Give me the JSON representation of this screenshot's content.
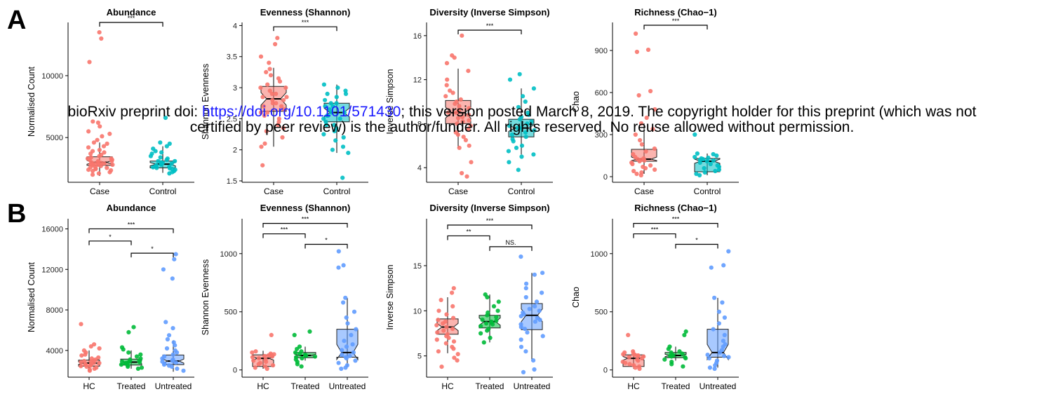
{
  "panels": {
    "a_label": "A",
    "b_label": "B"
  },
  "watermark": {
    "line1_pre": "bioRxiv preprint doi: ",
    "line1_link": "https://doi.org/10.1101/571430",
    "line1_post": "; this version posted March 8, 2019. The copyright holder for this preprint (which was not",
    "line2": "certified by peer review) is the author/funder. All rights reserved. No reuse allowed without permission."
  },
  "colors": {
    "Case": "#F8766D",
    "Control": "#00BFC4",
    "HC": "#F8766D",
    "Treated": "#00BA38",
    "Untreated": "#619CFF"
  },
  "chart_data": [
    {
      "type": "box",
      "row": "A",
      "title": "Abundance",
      "ylabel": "Normalised Count",
      "categories": [
        "Case",
        "Control"
      ],
      "ylim": [
        1500,
        14300
      ],
      "yticks": [
        5000,
        10000
      ],
      "boxes": [
        {
          "min": 1900,
          "q1": 2750,
          "median": 3000,
          "q3": 3450,
          "max": 4600,
          "notch_lo": 2850,
          "notch_hi": 3150
        },
        {
          "min": 2150,
          "q1": 2550,
          "median": 2850,
          "q3": 3100,
          "max": 4300,
          "notch_lo": 2720,
          "notch_hi": 2980
        }
      ],
      "points": [
        [
          13500,
          13000,
          11100,
          6300,
          6200,
          5900,
          5500,
          5300,
          5100,
          4800,
          4600,
          4500,
          4300,
          4200,
          4000,
          3900,
          3800,
          3700,
          3600,
          3500,
          3400,
          3300,
          3300,
          3200,
          3200,
          3100,
          3100,
          3000,
          3000,
          2950,
          2900,
          2900,
          2850,
          2800,
          2800,
          2750,
          2700,
          2650,
          2600,
          2550,
          2500,
          2450,
          2400,
          2350,
          2300,
          2200,
          2100,
          2000
        ],
        [
          6600,
          4600,
          4500,
          4300,
          4100,
          3900,
          3800,
          3700,
          3500,
          3400,
          3300,
          3200,
          3100,
          3100,
          3000,
          2950,
          2900,
          2900,
          2850,
          2800,
          2750,
          2700,
          2650,
          2600,
          2550,
          2500,
          2450,
          2400,
          2300,
          2200,
          2100
        ]
      ],
      "comparisons": [
        {
          "from": 0,
          "to": 1,
          "y": 14300,
          "label": "***"
        }
      ]
    },
    {
      "type": "box",
      "row": "A",
      "title": "Evenness (Shannon)",
      "ylabel": "Shannon Evenness",
      "categories": [
        "Case",
        "Control"
      ],
      "ylim": [
        1.5,
        4.05
      ],
      "yticks": [
        1.5,
        2.0,
        2.5,
        3.0,
        3.5,
        4.0
      ],
      "boxes": [
        {
          "min": 2.05,
          "q1": 2.62,
          "median": 2.82,
          "q3": 3.02,
          "max": 3.32,
          "notch_lo": 2.72,
          "notch_hi": 2.92
        },
        {
          "min": 1.95,
          "q1": 2.45,
          "median": 2.6,
          "q3": 2.75,
          "max": 3.05,
          "notch_lo": 2.53,
          "notch_hi": 2.67
        }
      ],
      "points": [
        [
          3.8,
          3.7,
          3.5,
          3.4,
          3.3,
          3.25,
          3.2,
          3.15,
          3.1,
          3.05,
          3.0,
          3.0,
          2.95,
          2.9,
          2.9,
          2.85,
          2.85,
          2.8,
          2.8,
          2.75,
          2.75,
          2.7,
          2.7,
          2.65,
          2.6,
          2.6,
          2.55,
          2.5,
          2.45,
          2.4,
          2.35,
          2.3,
          2.2,
          2.1,
          2.05,
          1.75
        ],
        [
          3.05,
          3.0,
          2.95,
          2.9,
          2.9,
          2.85,
          2.8,
          2.75,
          2.75,
          2.7,
          2.7,
          2.65,
          2.6,
          2.6,
          2.55,
          2.55,
          2.5,
          2.5,
          2.45,
          2.4,
          2.4,
          2.35,
          2.3,
          2.25,
          2.2,
          2.15,
          2.05,
          2.0,
          1.95,
          1.55
        ]
      ],
      "comparisons": [
        {
          "from": 0,
          "to": 1,
          "y": 3.98,
          "label": "***"
        }
      ]
    },
    {
      "type": "box",
      "row": "A",
      "title": "Diversity (Inverse Simpson)",
      "ylabel": "Inverse Simpson",
      "categories": [
        "Case",
        "Control"
      ],
      "ylim": [
        2.8,
        17.2
      ],
      "yticks": [
        4,
        8,
        12,
        16
      ],
      "boxes": [
        {
          "min": 5.8,
          "q1": 8.0,
          "median": 9.0,
          "q3": 10.1,
          "max": 13.0,
          "notch_lo": 8.5,
          "notch_hi": 9.5
        },
        {
          "min": 5.2,
          "q1": 6.8,
          "median": 7.6,
          "q3": 8.4,
          "max": 11.2,
          "notch_lo": 7.3,
          "notch_hi": 7.9
        }
      ],
      "points": [
        [
          16.0,
          14.2,
          14.0,
          13.5,
          12.8,
          12.0,
          11.5,
          11.0,
          10.8,
          10.5,
          10.2,
          10.0,
          9.8,
          9.6,
          9.4,
          9.2,
          9.0,
          9.0,
          8.8,
          8.6,
          8.5,
          8.3,
          8.2,
          8.0,
          7.8,
          7.5,
          7.2,
          7.0,
          6.8,
          6.5,
          6.0,
          5.8,
          4.5,
          3.5,
          3.2
        ],
        [
          12.5,
          12.0,
          11.2,
          10.5,
          10.0,
          9.5,
          9.0,
          8.8,
          8.6,
          8.4,
          8.2,
          8.0,
          7.8,
          7.6,
          7.6,
          7.4,
          7.2,
          7.0,
          6.8,
          6.6,
          6.4,
          6.0,
          5.8,
          5.5,
          5.2,
          5.0,
          4.5,
          3.8
        ]
      ],
      "comparisons": [
        {
          "from": 0,
          "to": 1,
          "y": 16.5,
          "label": "***"
        }
      ]
    },
    {
      "type": "box",
      "row": "A",
      "title": "Richness (Chao−1)",
      "ylabel": "Chao",
      "categories": [
        "Case",
        "Control"
      ],
      "ylim": [
        -30,
        1100
      ],
      "yticks": [
        0,
        300,
        600,
        900
      ],
      "boxes": [
        {
          "min": 20,
          "q1": 110,
          "median": 125,
          "q3": 195,
          "max": 380,
          "notch_lo": 115,
          "notch_hi": 140
        },
        {
          "min": 10,
          "q1": 35,
          "median": 110,
          "q3": 130,
          "max": 165,
          "notch_lo": 95,
          "notch_hi": 125
        }
      ],
      "points": [
        [
          1020,
          905,
          890,
          610,
          580,
          480,
          420,
          380,
          340,
          300,
          260,
          230,
          200,
          180,
          160,
          140,
          130,
          125,
          120,
          115,
          110,
          100,
          90,
          80,
          70,
          60,
          50,
          40,
          30,
          20,
          10
        ],
        [
          300,
          165,
          160,
          150,
          140,
          135,
          130,
          125,
          120,
          115,
          110,
          100,
          90,
          80,
          70,
          60,
          50,
          40,
          30,
          20,
          10
        ]
      ],
      "comparisons": [
        {
          "from": 0,
          "to": 1,
          "y": 1080,
          "label": "***"
        }
      ]
    },
    {
      "type": "box",
      "row": "B",
      "title": "Abundance",
      "ylabel": "Normalised Count",
      "categories": [
        "HC",
        "Treated",
        "Untreated"
      ],
      "ylim": [
        1500,
        17000
      ],
      "yticks": [
        4000,
        8000,
        12000,
        16000
      ],
      "boxes": [
        {
          "min": 1900,
          "q1": 2450,
          "median": 2750,
          "q3": 3050,
          "max": 4000,
          "notch_lo": 2620,
          "notch_hi": 2880
        },
        {
          "min": 2200,
          "q1": 2550,
          "median": 2850,
          "q3": 3150,
          "max": 4000,
          "notch_lo": 2700,
          "notch_hi": 3000
        },
        {
          "min": 1900,
          "q1": 2600,
          "median": 2950,
          "q3": 3550,
          "max": 5000,
          "notch_lo": 2750,
          "notch_hi": 3150
        }
      ],
      "points": [
        [
          6600,
          4600,
          4400,
          4200,
          4000,
          3800,
          3600,
          3500,
          3300,
          3200,
          3100,
          3000,
          2950,
          2900,
          2850,
          2800,
          2750,
          2700,
          2650,
          2600,
          2550,
          2500,
          2450,
          2400,
          2300,
          2200,
          2100,
          2000
        ],
        [
          6300,
          5800,
          4300,
          4100,
          3800,
          3600,
          3400,
          3200,
          3100,
          3000,
          2950,
          2900,
          2850,
          2800,
          2750,
          2700,
          2600,
          2500,
          2400,
          2300,
          2200
        ],
        [
          13500,
          13000,
          12000,
          11100,
          6800,
          6200,
          5500,
          5100,
          4800,
          4500,
          4200,
          4000,
          3800,
          3600,
          3400,
          3200,
          3100,
          3000,
          2900,
          2800,
          2700,
          2600,
          2500,
          2400,
          2200,
          2000
        ]
      ],
      "comparisons": [
        {
          "from": 0,
          "to": 2,
          "y": 16000,
          "label": "***"
        },
        {
          "from": 0,
          "to": 1,
          "y": 14800,
          "label": "*"
        },
        {
          "from": 1,
          "to": 2,
          "y": 13600,
          "label": "*"
        }
      ]
    },
    {
      "type": "box",
      "row": "B",
      "title": "Evenness (Shannon)",
      "ylabel": "Shannon Evenness",
      "categories": [
        "HC",
        "Treated",
        "Untreated"
      ],
      "ylim": [
        -50,
        1300
      ],
      "yticks": [
        0,
        500,
        1000
      ],
      "boxes": [
        {
          "min": 10,
          "q1": 30,
          "median": 100,
          "q3": 130,
          "max": 165,
          "notch_lo": 85,
          "notch_hi": 115
        },
        {
          "min": 80,
          "q1": 105,
          "median": 125,
          "q3": 150,
          "max": 200,
          "notch_lo": 115,
          "notch_hi": 135
        },
        {
          "min": 20,
          "q1": 110,
          "median": 150,
          "q3": 350,
          "max": 620,
          "notch_lo": 90,
          "notch_hi": 220
        }
      ],
      "points": [
        [
          300,
          160,
          150,
          140,
          135,
          130,
          125,
          120,
          115,
          110,
          100,
          90,
          80,
          70,
          60,
          50,
          40,
          30,
          20,
          10
        ],
        [
          330,
          300,
          200,
          180,
          160,
          150,
          140,
          130,
          125,
          120,
          115,
          110,
          100,
          90,
          70,
          50,
          30
        ],
        [
          1020,
          900,
          880,
          620,
          580,
          500,
          450,
          400,
          350,
          300,
          250,
          220,
          200,
          170,
          150,
          130,
          120,
          110,
          100,
          80,
          60,
          40,
          20,
          10
        ]
      ],
      "comparisons": [
        {
          "from": 0,
          "to": 2,
          "y": 1260,
          "label": "***"
        },
        {
          "from": 0,
          "to": 1,
          "y": 1170,
          "label": "***"
        },
        {
          "from": 1,
          "to": 2,
          "y": 1080,
          "label": "*"
        }
      ]
    },
    {
      "type": "box",
      "row": "B",
      "title": "Diversity (Inverse Simpson)",
      "ylabel": "Inverse Simpson",
      "categories": [
        "HC",
        "Treated",
        "Untreated"
      ],
      "ylim": [
        2.8,
        20.2
      ],
      "yticks": [
        5,
        10,
        15
      ],
      "boxes": [
        {
          "min": 5.3,
          "q1": 7.4,
          "median": 8.2,
          "q3": 9.1,
          "max": 11.5,
          "notch_lo": 7.8,
          "notch_hi": 8.6
        },
        {
          "min": 6.5,
          "q1": 8.1,
          "median": 8.8,
          "q3": 9.5,
          "max": 11.8,
          "notch_lo": 8.4,
          "notch_hi": 9.2
        },
        {
          "min": 4.5,
          "q1": 7.9,
          "median": 9.5,
          "q3": 10.8,
          "max": 14.2,
          "notch_lo": 8.8,
          "notch_hi": 10.2
        }
      ],
      "points": [
        [
          12.5,
          12.0,
          11.2,
          10.5,
          10.0,
          9.6,
          9.2,
          9.0,
          8.8,
          8.6,
          8.4,
          8.2,
          8.0,
          7.8,
          7.6,
          7.4,
          7.2,
          7.0,
          6.8,
          6.6,
          6.4,
          6.0,
          5.8,
          5.5,
          5.2,
          4.8,
          4.5,
          3.8
        ],
        [
          11.8,
          11.5,
          11.0,
          10.5,
          10.0,
          9.8,
          9.5,
          9.3,
          9.0,
          8.9,
          8.8,
          8.7,
          8.6,
          8.5,
          8.3,
          8.0,
          7.8,
          7.5,
          7.0,
          6.5
        ],
        [
          16.0,
          14.2,
          14.0,
          13.0,
          12.5,
          12.0,
          11.5,
          11.0,
          10.5,
          10.2,
          10.0,
          9.8,
          9.6,
          9.4,
          9.2,
          9.0,
          8.8,
          8.5,
          8.2,
          8.0,
          7.6,
          7.2,
          6.8,
          6.0,
          5.5,
          4.5,
          3.5,
          3.2
        ]
      ],
      "comparisons": [
        {
          "from": 0,
          "to": 2,
          "y": 19.5,
          "label": "***"
        },
        {
          "from": 0,
          "to": 1,
          "y": 18.3,
          "label": "**"
        },
        {
          "from": 1,
          "to": 2,
          "y": 17.1,
          "label": "NS."
        }
      ]
    },
    {
      "type": "box",
      "row": "B",
      "title": "Richness (Chao−1)",
      "ylabel": "Chao",
      "categories": [
        "HC",
        "Treated",
        "Untreated"
      ],
      "ylim": [
        -50,
        1300
      ],
      "yticks": [
        0,
        500,
        1000
      ],
      "boxes": [
        {
          "min": 10,
          "q1": 30,
          "median": 100,
          "q3": 130,
          "max": 165,
          "notch_lo": 85,
          "notch_hi": 115
        },
        {
          "min": 80,
          "q1": 105,
          "median": 125,
          "q3": 150,
          "max": 200,
          "notch_lo": 115,
          "notch_hi": 135
        },
        {
          "min": 20,
          "q1": 110,
          "median": 150,
          "q3": 350,
          "max": 620,
          "notch_lo": 90,
          "notch_hi": 220
        }
      ],
      "points": [
        [
          300,
          160,
          150,
          140,
          135,
          130,
          125,
          120,
          115,
          110,
          100,
          90,
          80,
          70,
          60,
          50,
          40,
          30,
          20,
          10
        ],
        [
          330,
          300,
          200,
          180,
          160,
          150,
          140,
          130,
          125,
          120,
          115,
          110,
          100,
          90,
          70,
          50,
          30
        ],
        [
          1020,
          900,
          880,
          620,
          580,
          500,
          450,
          400,
          350,
          300,
          250,
          220,
          200,
          170,
          150,
          130,
          120,
          110,
          100,
          80,
          60,
          40,
          20,
          10
        ]
      ],
      "comparisons": [
        {
          "from": 0,
          "to": 2,
          "y": 1260,
          "label": "***"
        },
        {
          "from": 0,
          "to": 1,
          "y": 1170,
          "label": "***"
        },
        {
          "from": 1,
          "to": 2,
          "y": 1080,
          "label": "*"
        }
      ]
    }
  ]
}
